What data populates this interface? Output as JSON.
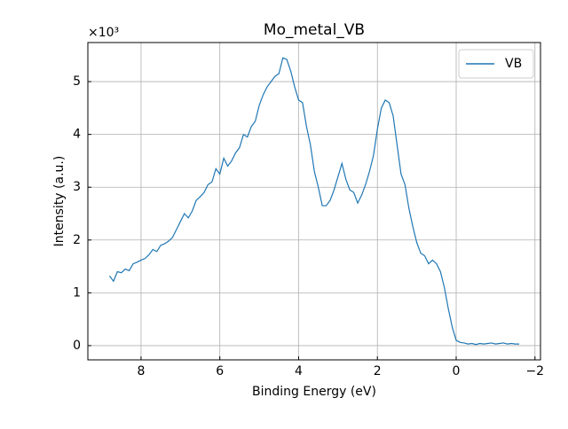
{
  "chart_data": {
    "type": "line",
    "title": "Mo_metal_VB",
    "xlabel": "Binding Energy (eV)",
    "ylabel": "Intensity (a.u.)",
    "y_offset_label": "×10³",
    "x": [
      8.8,
      8.7,
      8.6,
      8.5,
      8.4,
      8.3,
      8.2,
      8.1,
      8.0,
      7.9,
      7.8,
      7.7,
      7.6,
      7.5,
      7.4,
      7.3,
      7.2,
      7.1,
      7.0,
      6.9,
      6.8,
      6.7,
      6.6,
      6.5,
      6.4,
      6.3,
      6.2,
      6.1,
      6.0,
      5.9,
      5.8,
      5.7,
      5.6,
      5.5,
      5.4,
      5.3,
      5.2,
      5.1,
      5.0,
      4.9,
      4.8,
      4.7,
      4.6,
      4.5,
      4.4,
      4.3,
      4.2,
      4.1,
      4.0,
      3.9,
      3.8,
      3.7,
      3.6,
      3.5,
      3.4,
      3.3,
      3.2,
      3.1,
      3.0,
      2.9,
      2.8,
      2.7,
      2.6,
      2.5,
      2.4,
      2.3,
      2.2,
      2.1,
      2.0,
      1.9,
      1.8,
      1.7,
      1.6,
      1.5,
      1.4,
      1.3,
      1.2,
      1.1,
      1.0,
      0.9,
      0.8,
      0.7,
      0.6,
      0.5,
      0.4,
      0.3,
      0.2,
      0.1,
      0.0,
      -0.1,
      -0.2,
      -0.3,
      -0.4,
      -0.5,
      -0.6,
      -0.7,
      -0.8,
      -0.9,
      -1.0,
      -1.1,
      -1.2,
      -1.3,
      -1.4,
      -1.5,
      -1.6
    ],
    "series": [
      {
        "name": "VB",
        "color": "#1f77b4",
        "values": [
          1.32,
          1.22,
          1.4,
          1.38,
          1.45,
          1.42,
          1.55,
          1.58,
          1.62,
          1.65,
          1.72,
          1.82,
          1.78,
          1.9,
          1.93,
          1.98,
          2.05,
          2.2,
          2.35,
          2.5,
          2.42,
          2.55,
          2.75,
          2.82,
          2.9,
          3.05,
          3.1,
          3.35,
          3.25,
          3.55,
          3.4,
          3.5,
          3.65,
          3.75,
          4.0,
          3.95,
          4.15,
          4.25,
          4.55,
          4.75,
          4.9,
          5.0,
          5.1,
          5.15,
          5.45,
          5.42,
          5.2,
          4.9,
          4.65,
          4.6,
          4.15,
          3.8,
          3.3,
          3.0,
          2.65,
          2.65,
          2.75,
          2.95,
          3.2,
          3.45,
          3.15,
          2.95,
          2.9,
          2.7,
          2.85,
          3.05,
          3.3,
          3.6,
          4.1,
          4.5,
          4.65,
          4.6,
          4.35,
          3.8,
          3.25,
          3.05,
          2.6,
          2.25,
          1.95,
          1.75,
          1.7,
          1.55,
          1.62,
          1.55,
          1.4,
          1.1,
          0.7,
          0.35,
          0.1,
          0.06,
          0.05,
          0.03,
          0.04,
          0.02,
          0.04,
          0.03,
          0.04,
          0.05,
          0.03,
          0.04,
          0.05,
          0.03,
          0.04,
          0.03,
          0.03
        ]
      }
    ],
    "xlim": [
      9.35,
      -2.14
    ],
    "ylim": [
      -0.27,
      5.74
    ],
    "xticks": [
      8,
      6,
      4,
      2,
      0,
      {
        "value": -2,
        "label": "−2"
      }
    ],
    "yticks": [
      0,
      1,
      2,
      3,
      4,
      5
    ],
    "grid": true,
    "legend": "upper right"
  }
}
